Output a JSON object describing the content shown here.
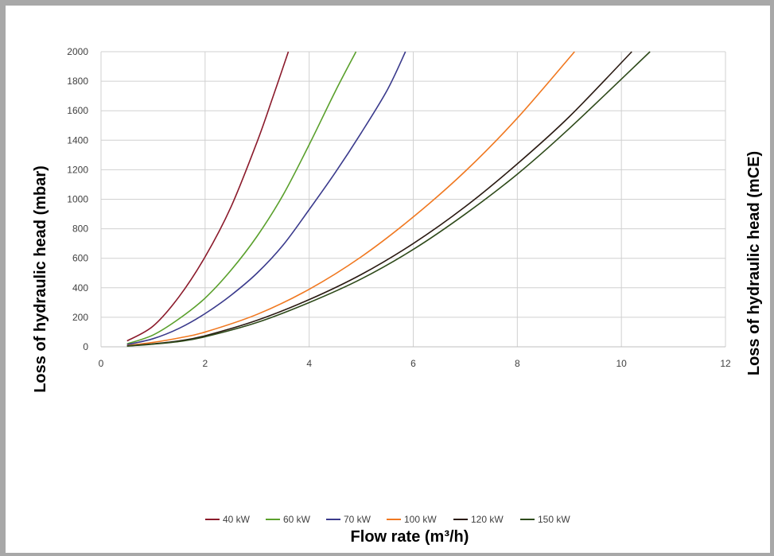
{
  "chart_data": {
    "type": "line",
    "title": "",
    "xlabel": "Flow rate (m³/h)",
    "ylabel_left": "Loss of hydraulic head (mbar)",
    "ylabel_right": "Loss of hydraulic head (mCE)",
    "xlim": [
      0,
      12
    ],
    "ylim": [
      0,
      2000
    ],
    "xticks": [
      0,
      2,
      4,
      6,
      8,
      10,
      12
    ],
    "yticks": [
      0,
      200,
      400,
      600,
      800,
      1000,
      1200,
      1400,
      1600,
      1800,
      2000
    ],
    "grid": true,
    "legend_position": "bottom",
    "series": [
      {
        "name": "40 kW",
        "color": "#8b1a2b",
        "points": [
          [
            0.5,
            40
          ],
          [
            1,
            140
          ],
          [
            1.5,
            340
          ],
          [
            2,
            610
          ],
          [
            2.5,
            950
          ],
          [
            3,
            1390
          ],
          [
            3.3,
            1690
          ],
          [
            3.6,
            2000
          ]
        ]
      },
      {
        "name": "60 kW",
        "color": "#5aa02c",
        "points": [
          [
            0.5,
            20
          ],
          [
            1,
            80
          ],
          [
            1.5,
            190
          ],
          [
            2,
            330
          ],
          [
            2.5,
            520
          ],
          [
            3,
            750
          ],
          [
            3.5,
            1030
          ],
          [
            4,
            1370
          ],
          [
            4.5,
            1730
          ],
          [
            4.9,
            2000
          ]
        ]
      },
      {
        "name": "70 kW",
        "color": "#3a3a8c",
        "points": [
          [
            0.5,
            15
          ],
          [
            1,
            55
          ],
          [
            1.5,
            125
          ],
          [
            2,
            225
          ],
          [
            2.5,
            350
          ],
          [
            3,
            500
          ],
          [
            3.5,
            690
          ],
          [
            4,
            930
          ],
          [
            4.5,
            1180
          ],
          [
            5,
            1450
          ],
          [
            5.5,
            1740
          ],
          [
            5.85,
            2000
          ]
        ]
      },
      {
        "name": "100 kW",
        "color": "#f07820",
        "points": [
          [
            0.5,
            8
          ],
          [
            1,
            30
          ],
          [
            1.5,
            60
          ],
          [
            2,
            100
          ],
          [
            3,
            220
          ],
          [
            4,
            390
          ],
          [
            5,
            610
          ],
          [
            6,
            880
          ],
          [
            7,
            1190
          ],
          [
            8,
            1550
          ],
          [
            9.1,
            2000
          ]
        ]
      },
      {
        "name": "120 kW",
        "color": "#2a1a12",
        "points": [
          [
            0.5,
            6
          ],
          [
            1,
            20
          ],
          [
            1.5,
            40
          ],
          [
            2,
            75
          ],
          [
            3,
            180
          ],
          [
            4,
            320
          ],
          [
            5,
            490
          ],
          [
            6,
            700
          ],
          [
            7,
            950
          ],
          [
            8,
            1240
          ],
          [
            9,
            1560
          ],
          [
            10.2,
            2000
          ]
        ]
      },
      {
        "name": "150 kW",
        "color": "#2e4a1a",
        "points": [
          [
            0.5,
            5
          ],
          [
            1,
            18
          ],
          [
            1.5,
            36
          ],
          [
            2,
            68
          ],
          [
            3,
            165
          ],
          [
            4,
            300
          ],
          [
            5,
            460
          ],
          [
            6,
            660
          ],
          [
            7,
            900
          ],
          [
            8,
            1170
          ],
          [
            9,
            1480
          ],
          [
            10.55,
            2000
          ]
        ]
      }
    ]
  }
}
